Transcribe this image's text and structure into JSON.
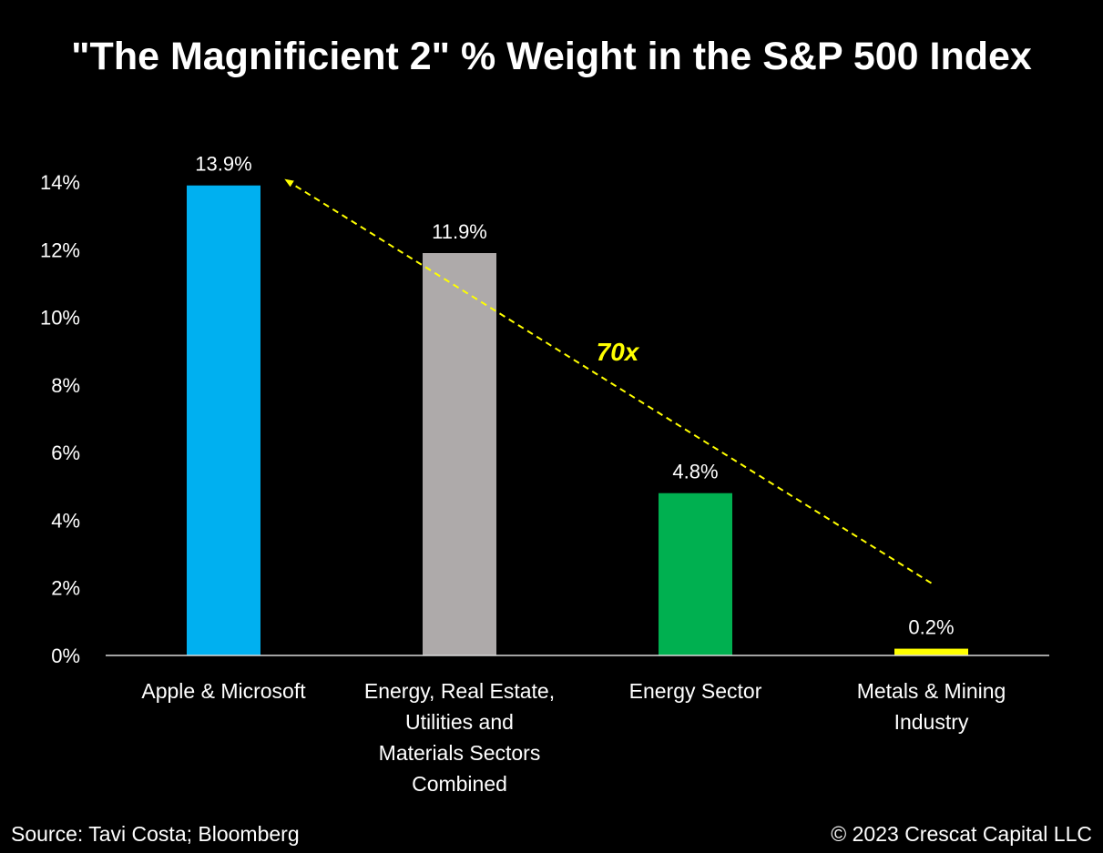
{
  "title": "\"The Magnificient 2\" % Weight in the S&P 500 Index",
  "source": "Source: Tavi Costa; Bloomberg",
  "copyright": "© 2023 Crescat Capital LLC",
  "chart_data": {
    "type": "bar",
    "title": "\"The Magnificient 2\" % Weight in the S&P 500 Index",
    "xlabel": "",
    "ylabel": "",
    "categories": [
      [
        "Apple & Microsoft"
      ],
      [
        "Energy, Real Estate,",
        "Utilities and",
        "Materials Sectors",
        "Combined"
      ],
      [
        "Energy Sector"
      ],
      [
        "Metals & Mining",
        "Industry"
      ]
    ],
    "values": [
      13.9,
      11.9,
      4.8,
      0.2
    ],
    "data_labels": [
      "13.9%",
      "11.9%",
      "4.8%",
      "0.2%"
    ],
    "bar_colors": [
      "#00b0f0",
      "#aeaaaa",
      "#00b050",
      "#ffff00"
    ],
    "ylim": [
      0,
      14
    ],
    "yticks": [
      0,
      2,
      4,
      6,
      8,
      10,
      12,
      14
    ],
    "ytick_labels": [
      "0%",
      "2%",
      "4%",
      "6%",
      "8%",
      "10%",
      "12%",
      "14%"
    ],
    "grid": false,
    "legend": "none",
    "annotation": {
      "text": "70x",
      "color": "#ffff00",
      "arrow": "dashed, from Metals & Mining Industry up to Apple & Microsoft"
    }
  }
}
